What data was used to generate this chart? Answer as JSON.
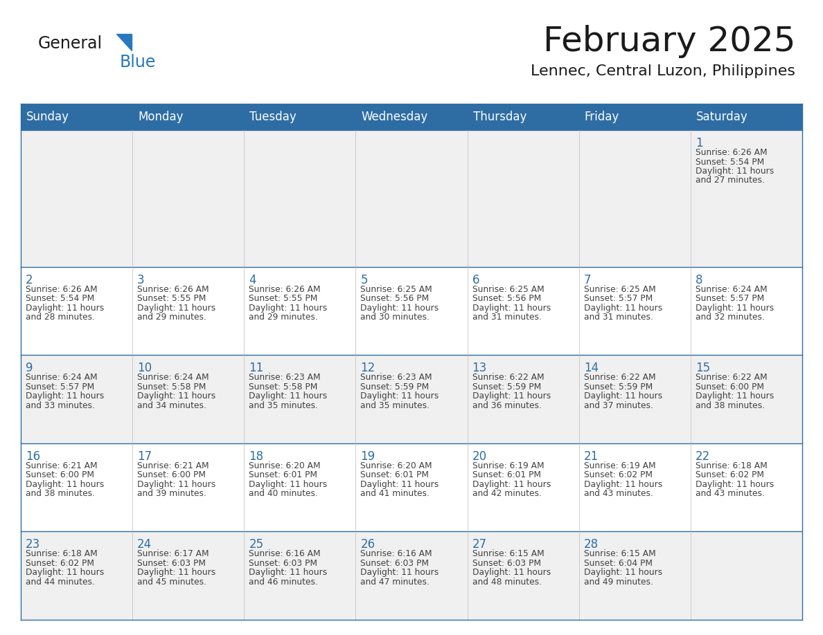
{
  "title": "February 2025",
  "subtitle": "Lennec, Central Luzon, Philippines",
  "header_bg": "#2E6DA4",
  "header_text_color": "#FFFFFF",
  "border_color": "#2E6DA4",
  "day_headers": [
    "Sunday",
    "Monday",
    "Tuesday",
    "Wednesday",
    "Thursday",
    "Friday",
    "Saturday"
  ],
  "day_number_color": "#2E6DA4",
  "text_color": "#404040",
  "logo_general_color": "#1a1a1a",
  "logo_blue_color": "#2878BE",
  "row_bg": [
    "#F0F0F0",
    "#FFFFFF",
    "#F0F0F0",
    "#FFFFFF",
    "#F0F0F0"
  ],
  "weeks": [
    [
      {
        "day": null,
        "sunrise": null,
        "sunset": null,
        "daylight": null
      },
      {
        "day": null,
        "sunrise": null,
        "sunset": null,
        "daylight": null
      },
      {
        "day": null,
        "sunrise": null,
        "sunset": null,
        "daylight": null
      },
      {
        "day": null,
        "sunrise": null,
        "sunset": null,
        "daylight": null
      },
      {
        "day": null,
        "sunrise": null,
        "sunset": null,
        "daylight": null
      },
      {
        "day": null,
        "sunrise": null,
        "sunset": null,
        "daylight": null
      },
      {
        "day": 1,
        "sunrise": "6:26 AM",
        "sunset": "5:54 PM",
        "daylight": "11 hours and 27 minutes."
      }
    ],
    [
      {
        "day": 2,
        "sunrise": "6:26 AM",
        "sunset": "5:54 PM",
        "daylight": "11 hours and 28 minutes."
      },
      {
        "day": 3,
        "sunrise": "6:26 AM",
        "sunset": "5:55 PM",
        "daylight": "11 hours and 29 minutes."
      },
      {
        "day": 4,
        "sunrise": "6:26 AM",
        "sunset": "5:55 PM",
        "daylight": "11 hours and 29 minutes."
      },
      {
        "day": 5,
        "sunrise": "6:25 AM",
        "sunset": "5:56 PM",
        "daylight": "11 hours and 30 minutes."
      },
      {
        "day": 6,
        "sunrise": "6:25 AM",
        "sunset": "5:56 PM",
        "daylight": "11 hours and 31 minutes."
      },
      {
        "day": 7,
        "sunrise": "6:25 AM",
        "sunset": "5:57 PM",
        "daylight": "11 hours and 31 minutes."
      },
      {
        "day": 8,
        "sunrise": "6:24 AM",
        "sunset": "5:57 PM",
        "daylight": "11 hours and 32 minutes."
      }
    ],
    [
      {
        "day": 9,
        "sunrise": "6:24 AM",
        "sunset": "5:57 PM",
        "daylight": "11 hours and 33 minutes."
      },
      {
        "day": 10,
        "sunrise": "6:24 AM",
        "sunset": "5:58 PM",
        "daylight": "11 hours and 34 minutes."
      },
      {
        "day": 11,
        "sunrise": "6:23 AM",
        "sunset": "5:58 PM",
        "daylight": "11 hours and 35 minutes."
      },
      {
        "day": 12,
        "sunrise": "6:23 AM",
        "sunset": "5:59 PM",
        "daylight": "11 hours and 35 minutes."
      },
      {
        "day": 13,
        "sunrise": "6:22 AM",
        "sunset": "5:59 PM",
        "daylight": "11 hours and 36 minutes."
      },
      {
        "day": 14,
        "sunrise": "6:22 AM",
        "sunset": "5:59 PM",
        "daylight": "11 hours and 37 minutes."
      },
      {
        "day": 15,
        "sunrise": "6:22 AM",
        "sunset": "6:00 PM",
        "daylight": "11 hours and 38 minutes."
      }
    ],
    [
      {
        "day": 16,
        "sunrise": "6:21 AM",
        "sunset": "6:00 PM",
        "daylight": "11 hours and 38 minutes."
      },
      {
        "day": 17,
        "sunrise": "6:21 AM",
        "sunset": "6:00 PM",
        "daylight": "11 hours and 39 minutes."
      },
      {
        "day": 18,
        "sunrise": "6:20 AM",
        "sunset": "6:01 PM",
        "daylight": "11 hours and 40 minutes."
      },
      {
        "day": 19,
        "sunrise": "6:20 AM",
        "sunset": "6:01 PM",
        "daylight": "11 hours and 41 minutes."
      },
      {
        "day": 20,
        "sunrise": "6:19 AM",
        "sunset": "6:01 PM",
        "daylight": "11 hours and 42 minutes."
      },
      {
        "day": 21,
        "sunrise": "6:19 AM",
        "sunset": "6:02 PM",
        "daylight": "11 hours and 43 minutes."
      },
      {
        "day": 22,
        "sunrise": "6:18 AM",
        "sunset": "6:02 PM",
        "daylight": "11 hours and 43 minutes."
      }
    ],
    [
      {
        "day": 23,
        "sunrise": "6:18 AM",
        "sunset": "6:02 PM",
        "daylight": "11 hours and 44 minutes."
      },
      {
        "day": 24,
        "sunrise": "6:17 AM",
        "sunset": "6:03 PM",
        "daylight": "11 hours and 45 minutes."
      },
      {
        "day": 25,
        "sunrise": "6:16 AM",
        "sunset": "6:03 PM",
        "daylight": "11 hours and 46 minutes."
      },
      {
        "day": 26,
        "sunrise": "6:16 AM",
        "sunset": "6:03 PM",
        "daylight": "11 hours and 47 minutes."
      },
      {
        "day": 27,
        "sunrise": "6:15 AM",
        "sunset": "6:03 PM",
        "daylight": "11 hours and 48 minutes."
      },
      {
        "day": 28,
        "sunrise": "6:15 AM",
        "sunset": "6:04 PM",
        "daylight": "11 hours and 49 minutes."
      },
      {
        "day": null,
        "sunrise": null,
        "sunset": null,
        "daylight": null
      }
    ]
  ]
}
